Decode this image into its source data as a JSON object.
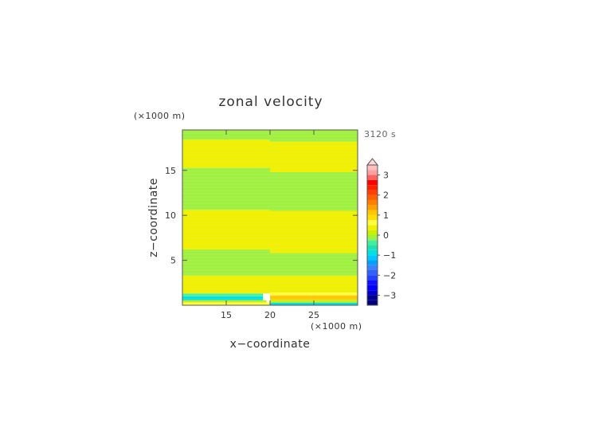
{
  "chart_data": {
    "type": "heatmap",
    "title": "zonal velocity",
    "xlabel": "x−coordinate",
    "ylabel": "z−coordinate",
    "x_unit": "(×1000 m)",
    "y_unit": "(×1000 m)",
    "time_label": "3120 s",
    "xlim": [
      10,
      30
    ],
    "ylim": [
      0,
      19.5
    ],
    "x_ticks": [
      15,
      20,
      25
    ],
    "y_ticks": [
      5,
      10,
      15
    ],
    "colorbar": {
      "tick_values": [
        3,
        2,
        1,
        0,
        -1,
        -2,
        -3
      ],
      "tick_labels": [
        "3",
        "2",
        "1",
        "0",
        "−1",
        "−2",
        "−3"
      ],
      "levels": [
        -3.5,
        -3.25,
        -3,
        -2.75,
        -2.5,
        -2.25,
        -2,
        -1.75,
        -1.5,
        -1.25,
        -1,
        -0.75,
        -0.5,
        -0.25,
        0,
        0.25,
        0.5,
        0.75,
        1,
        1.25,
        1.5,
        1.75,
        2,
        2.25,
        2.5,
        2.75,
        3,
        3.25,
        3.5
      ],
      "colors": [
        "#000080",
        "#00008b",
        "#0000cd",
        "#0000ff",
        "#1010ff",
        "#2040ff",
        "#3060ff",
        "#4080ff",
        "#00a0ff",
        "#00c8ff",
        "#00e0e0",
        "#20e0b0",
        "#40f0a0",
        "#a0f040",
        "#c8f000",
        "#f0f000",
        "#ffff40",
        "#ffe000",
        "#ffc800",
        "#ffa000",
        "#ff8000",
        "#ff6000",
        "#ff4000",
        "#ff2000",
        "#ff0000",
        "#ff6060",
        "#ffa0a0",
        "#ffc0c0"
      ],
      "extend_max": true
    },
    "field": [
      {
        "x0": 10,
        "x1": 20,
        "z0": 0,
        "z1": 0.3,
        "value": 0.6
      },
      {
        "x0": 10,
        "x1": 19.6,
        "z0": 0.3,
        "z1": 0.55,
        "value": 0.1
      },
      {
        "x0": 10,
        "x1": 19.2,
        "z0": 0.55,
        "z1": 1.0,
        "value": -0.9
      },
      {
        "x0": 10,
        "x1": 19.2,
        "z0": 1.0,
        "z1": 1.3,
        "value": -0.3
      },
      {
        "x0": 10,
        "x1": 20,
        "z0": 1.3,
        "z1": 3.3,
        "value": 0.3
      },
      {
        "x0": 10,
        "x1": 20,
        "z0": 3.3,
        "z1": 6.2,
        "value": -0.2
      },
      {
        "x0": 10,
        "x1": 20,
        "z0": 6.2,
        "z1": 10.6,
        "value": 0.3
      },
      {
        "x0": 10,
        "x1": 20,
        "z0": 10.6,
        "z1": 15.3,
        "value": -0.2
      },
      {
        "x0": 10,
        "x1": 20,
        "z0": 15.3,
        "z1": 18.4,
        "value": 0.3
      },
      {
        "x0": 10,
        "x1": 20,
        "z0": 18.4,
        "z1": 19.5,
        "value": -0.2
      },
      {
        "x0": 20,
        "x1": 30,
        "z0": 0,
        "z1": 0.3,
        "value": -0.8
      },
      {
        "x0": 20,
        "x1": 30,
        "z0": 0.3,
        "z1": 0.6,
        "value": 0.1
      },
      {
        "x0": 20,
        "x1": 30,
        "z0": 0.6,
        "z1": 1.1,
        "value": 1.2
      },
      {
        "x0": 20,
        "x1": 30,
        "z0": 1.1,
        "z1": 1.4,
        "value": 0.6
      },
      {
        "x0": 20,
        "x1": 30,
        "z0": 1.4,
        "z1": 3.3,
        "value": 0.3
      },
      {
        "x0": 20,
        "x1": 30,
        "z0": 3.3,
        "z1": 5.8,
        "value": -0.2
      },
      {
        "x0": 20,
        "x1": 30,
        "z0": 5.8,
        "z1": 10.5,
        "value": 0.3
      },
      {
        "x0": 20,
        "x1": 30,
        "z0": 10.5,
        "z1": 14.8,
        "value": -0.2
      },
      {
        "x0": 20,
        "x1": 30,
        "z0": 14.8,
        "z1": 18.2,
        "value": 0.3
      },
      {
        "x0": 20,
        "x1": 30,
        "z0": 18.2,
        "z1": 19.5,
        "value": -0.2
      }
    ]
  }
}
